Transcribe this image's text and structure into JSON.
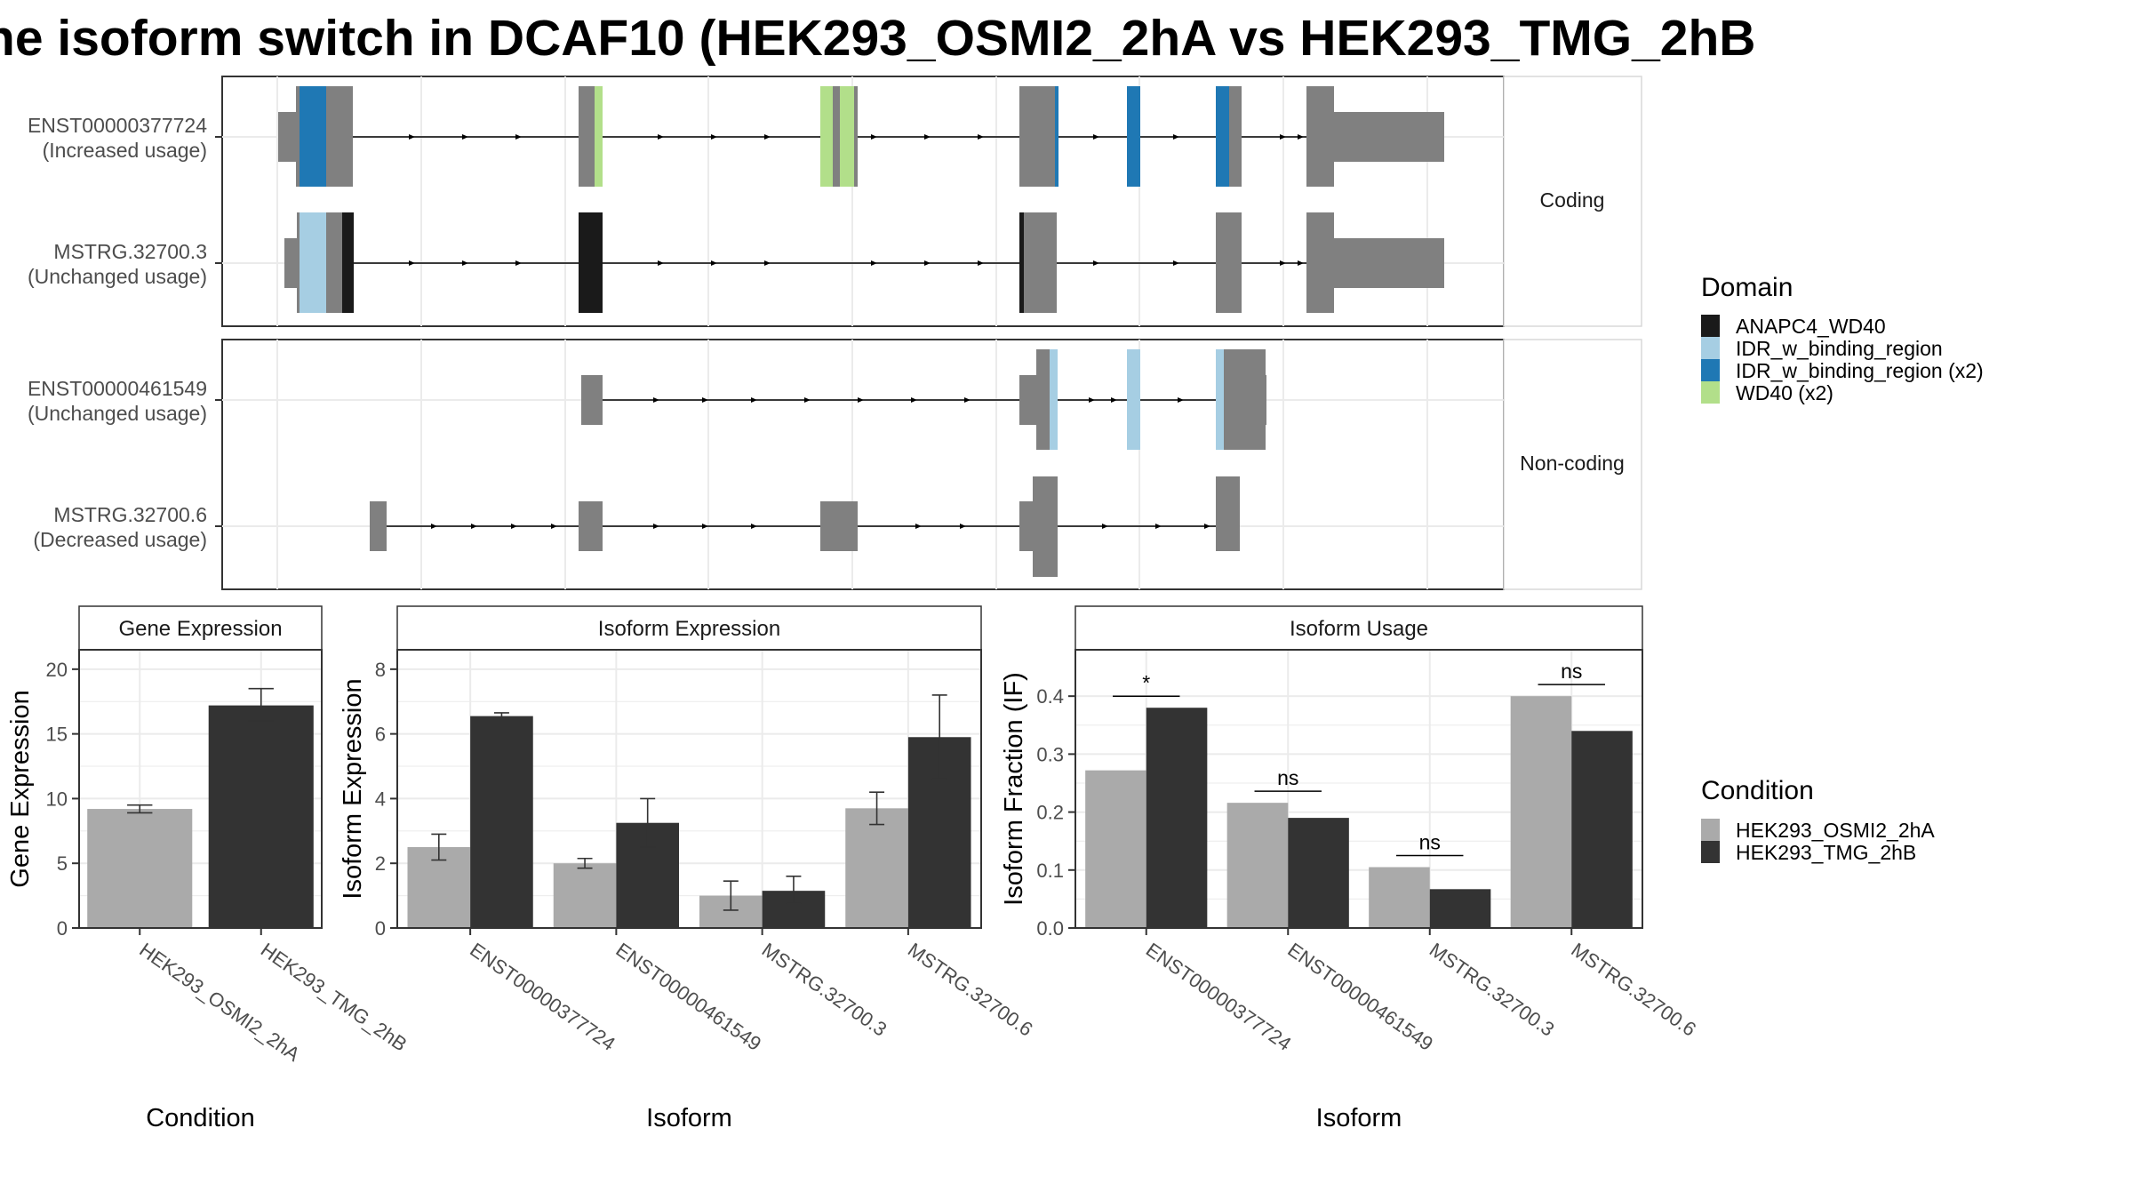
{
  "title": "ne isoform switch in DCAF10 (HEK293_OSMI2_2hA vs HEK293_TMG_2hB",
  "structure": {
    "facets": [
      "Coding",
      "Non-coding"
    ],
    "transcripts": [
      {
        "id": "ENST00000377724",
        "usage": "(Increased usage)"
      },
      {
        "id": "MSTRG.32700.3",
        "usage": "(Unchanged usage)"
      },
      {
        "id": "ENST00000461549",
        "usage": "(Unchanged usage)"
      },
      {
        "id": "MSTRG.32700.6",
        "usage": "(Decreased usage)"
      }
    ],
    "domain_legend": {
      "title": "Domain",
      "items": [
        {
          "label": "ANAPC4_WD40",
          "color": "#1a1a1a"
        },
        {
          "label": "IDR_w_binding_region",
          "color": "#a6cee3"
        },
        {
          "label": "IDR_w_binding_region (x2)",
          "color": "#1f78b4"
        },
        {
          "label": "WD40 (x2)",
          "color": "#b2df8a"
        }
      ]
    }
  },
  "condition_legend": {
    "title": "Condition",
    "items": [
      {
        "label": "HEK293_OSMI2_2hA",
        "color": "#aaaaaa"
      },
      {
        "label": "HEK293_TMG_2hB",
        "color": "#333333"
      }
    ]
  },
  "chart_data": [
    {
      "type": "bar",
      "title": "Gene Expression",
      "xlabel": "Condition",
      "ylabel": "Gene Expression",
      "ylim": [
        0,
        21.5
      ],
      "yticks": [
        0,
        5,
        10,
        15,
        20
      ],
      "categories": [
        "HEK293_OSMI2_2hA",
        "HEK293_TMG_2hB"
      ],
      "values": [
        9.2,
        17.2
      ],
      "errors": [
        [
          8.9,
          9.5
        ],
        [
          16.0,
          18.5
        ]
      ]
    },
    {
      "type": "bar",
      "title": "Isoform Expression",
      "xlabel": "Isoform",
      "ylabel": "Isoform Expression",
      "ylim": [
        0,
        8.6
      ],
      "yticks": [
        0,
        2,
        4,
        6,
        8
      ],
      "categories": [
        "ENST00000377724",
        "ENST00000461549",
        "MSTRG.32700.3",
        "MSTRG.32700.6"
      ],
      "series": [
        {
          "name": "HEK293_OSMI2_2hA",
          "values": [
            2.5,
            2.0,
            1.0,
            3.7
          ],
          "errors": [
            [
              2.1,
              2.9
            ],
            [
              1.85,
              2.15
            ],
            [
              0.55,
              1.45
            ],
            [
              3.2,
              4.2
            ]
          ]
        },
        {
          "name": "HEK293_TMG_2hB",
          "values": [
            6.55,
            3.25,
            1.15,
            5.9
          ],
          "errors": [
            [
              6.45,
              6.65
            ],
            [
              2.5,
              4.0
            ],
            [
              0.75,
              1.6
            ],
            [
              4.6,
              7.2
            ]
          ]
        }
      ]
    },
    {
      "type": "bar",
      "title": "Isoform Usage",
      "xlabel": "Isoform",
      "ylabel": "Isoform Fraction (IF)",
      "ylim": [
        0,
        0.48
      ],
      "yticks": [
        "0.0",
        "0.1",
        "0.2",
        "0.3",
        "0.4"
      ],
      "categories": [
        "ENST00000377724",
        "ENST00000461549",
        "MSTRG.32700.3",
        "MSTRG.32700.6"
      ],
      "series": [
        {
          "name": "HEK293_OSMI2_2hA",
          "values": [
            0.272,
            0.216,
            0.105,
            0.4
          ]
        },
        {
          "name": "HEK293_TMG_2hB",
          "values": [
            0.38,
            0.19,
            0.067,
            0.34
          ]
        }
      ],
      "significance": [
        "*",
        "ns",
        "ns",
        "ns"
      ]
    }
  ]
}
